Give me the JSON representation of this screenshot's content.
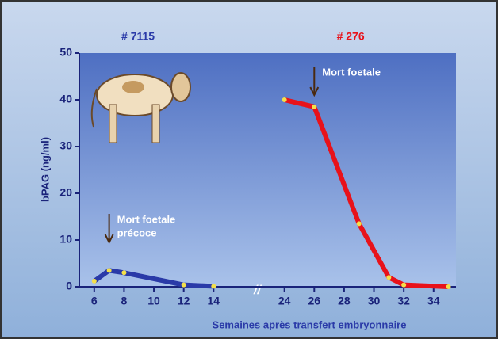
{
  "chart_data": {
    "type": "line",
    "y_label": "bPAG  (ng/ml)",
    "x_label": "Semaines après transfert embryonnaire",
    "xlim": [
      5,
      35.5
    ],
    "xticks": [
      6,
      8,
      10,
      12,
      14,
      24,
      26,
      28,
      30,
      32,
      34
    ],
    "ylim": [
      0,
      50
    ],
    "yticks": [
      0,
      10,
      20,
      30,
      40,
      50
    ],
    "series": [
      {
        "name": "# 7115",
        "color": "#2a3aa8",
        "x": [
          6,
          7,
          8,
          12,
          14
        ],
        "values": [
          1.2,
          3.5,
          3,
          0.4,
          0.1
        ]
      },
      {
        "name": "# 276",
        "color": "#e8121a",
        "x": [
          24,
          26,
          29,
          31,
          32,
          35
        ],
        "values": [
          40,
          38.5,
          13.5,
          2,
          0.4,
          0
        ]
      }
    ],
    "annotations": [
      {
        "x": 7,
        "lines": [
          "Mort foetale",
          "précoce"
        ]
      },
      {
        "x": 26,
        "lines": [
          "Mort foetale"
        ]
      }
    ]
  }
}
